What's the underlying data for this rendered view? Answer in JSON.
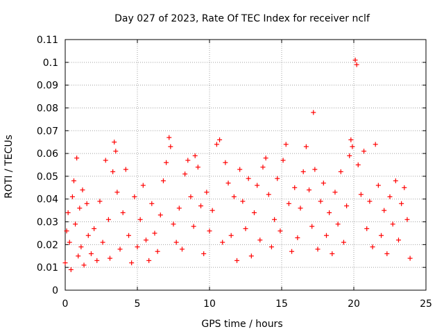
{
  "chart_data": {
    "type": "scatter",
    "title": "Day 027 of 2023, Rate Of TEC Index for receiver nclf",
    "xlabel": "GPS time / hours",
    "ylabel": "ROTI / TECUs",
    "xlim": [
      0,
      25
    ],
    "ylim": [
      0,
      0.11
    ],
    "x_ticks": [
      0,
      5,
      10,
      15,
      20,
      25
    ],
    "x_tick_labels": [
      "0",
      "5",
      "10",
      "15",
      "20",
      "25"
    ],
    "y_ticks": [
      0,
      0.01,
      0.02,
      0.03,
      0.04,
      0.05,
      0.06,
      0.07,
      0.08,
      0.09,
      0.1,
      0.11
    ],
    "y_tick_labels": [
      "0",
      "0.01",
      "0.02",
      "0.03",
      "0.04",
      "0.05",
      "0.06",
      "0.07",
      "0.08",
      "0.09",
      "0.1",
      "0.11"
    ],
    "grid": true,
    "marker": "plus",
    "series": [
      {
        "name": "ROTI",
        "color": "#ff0000",
        "points": [
          [
            0.0,
            0.012
          ],
          [
            0.1,
            0.026
          ],
          [
            0.2,
            0.034
          ],
          [
            0.3,
            0.021
          ],
          [
            0.4,
            0.009
          ],
          [
            0.5,
            0.041
          ],
          [
            0.6,
            0.048
          ],
          [
            0.7,
            0.029
          ],
          [
            0.8,
            0.058
          ],
          [
            0.9,
            0.015
          ],
          [
            1.0,
            0.036
          ],
          [
            1.1,
            0.019
          ],
          [
            1.2,
            0.044
          ],
          [
            1.3,
            0.011
          ],
          [
            1.5,
            0.038
          ],
          [
            1.6,
            0.024
          ],
          [
            1.8,
            0.016
          ],
          [
            2.0,
            0.027
          ],
          [
            2.2,
            0.013
          ],
          [
            2.4,
            0.039
          ],
          [
            2.6,
            0.021
          ],
          [
            2.8,
            0.057
          ],
          [
            3.0,
            0.031
          ],
          [
            3.1,
            0.014
          ],
          [
            3.3,
            0.052
          ],
          [
            3.4,
            0.065
          ],
          [
            3.5,
            0.061
          ],
          [
            3.6,
            0.043
          ],
          [
            3.8,
            0.018
          ],
          [
            4.0,
            0.034
          ],
          [
            4.2,
            0.053
          ],
          [
            4.4,
            0.024
          ],
          [
            4.6,
            0.012
          ],
          [
            4.8,
            0.041
          ],
          [
            5.0,
            0.019
          ],
          [
            5.2,
            0.031
          ],
          [
            5.4,
            0.046
          ],
          [
            5.6,
            0.022
          ],
          [
            5.8,
            0.013
          ],
          [
            6.0,
            0.038
          ],
          [
            6.2,
            0.025
          ],
          [
            6.4,
            0.017
          ],
          [
            6.6,
            0.033
          ],
          [
            6.8,
            0.048
          ],
          [
            7.0,
            0.056
          ],
          [
            7.2,
            0.067
          ],
          [
            7.3,
            0.063
          ],
          [
            7.5,
            0.029
          ],
          [
            7.7,
            0.021
          ],
          [
            7.9,
            0.036
          ],
          [
            8.1,
            0.018
          ],
          [
            8.3,
            0.051
          ],
          [
            8.5,
            0.057
          ],
          [
            8.7,
            0.041
          ],
          [
            8.9,
            0.028
          ],
          [
            9.0,
            0.059
          ],
          [
            9.2,
            0.054
          ],
          [
            9.4,
            0.037
          ],
          [
            9.6,
            0.016
          ],
          [
            9.8,
            0.043
          ],
          [
            10.0,
            0.026
          ],
          [
            10.2,
            0.035
          ],
          [
            10.5,
            0.064
          ],
          [
            10.7,
            0.066
          ],
          [
            10.9,
            0.021
          ],
          [
            11.1,
            0.056
          ],
          [
            11.3,
            0.047
          ],
          [
            11.5,
            0.024
          ],
          [
            11.7,
            0.041
          ],
          [
            11.9,
            0.013
          ],
          [
            12.1,
            0.053
          ],
          [
            12.3,
            0.039
          ],
          [
            12.5,
            0.027
          ],
          [
            12.7,
            0.049
          ],
          [
            12.9,
            0.015
          ],
          [
            13.1,
            0.034
          ],
          [
            13.3,
            0.046
          ],
          [
            13.5,
            0.022
          ],
          [
            13.7,
            0.054
          ],
          [
            13.9,
            0.058
          ],
          [
            14.1,
            0.042
          ],
          [
            14.3,
            0.019
          ],
          [
            14.5,
            0.031
          ],
          [
            14.7,
            0.049
          ],
          [
            14.9,
            0.026
          ],
          [
            15.1,
            0.057
          ],
          [
            15.3,
            0.064
          ],
          [
            15.5,
            0.038
          ],
          [
            15.7,
            0.017
          ],
          [
            15.9,
            0.045
          ],
          [
            16.1,
            0.023
          ],
          [
            16.3,
            0.036
          ],
          [
            16.5,
            0.052
          ],
          [
            16.7,
            0.063
          ],
          [
            16.9,
            0.044
          ],
          [
            17.1,
            0.028
          ],
          [
            17.2,
            0.078
          ],
          [
            17.3,
            0.053
          ],
          [
            17.5,
            0.018
          ],
          [
            17.7,
            0.039
          ],
          [
            17.9,
            0.047
          ],
          [
            18.1,
            0.024
          ],
          [
            18.3,
            0.034
          ],
          [
            18.5,
            0.016
          ],
          [
            18.7,
            0.043
          ],
          [
            18.9,
            0.029
          ],
          [
            19.1,
            0.052
          ],
          [
            19.3,
            0.021
          ],
          [
            19.5,
            0.037
          ],
          [
            19.7,
            0.059
          ],
          [
            19.8,
            0.066
          ],
          [
            19.9,
            0.063
          ],
          [
            20.1,
            0.101
          ],
          [
            20.2,
            0.099
          ],
          [
            20.3,
            0.055
          ],
          [
            20.5,
            0.042
          ],
          [
            20.7,
            0.061
          ],
          [
            20.9,
            0.027
          ],
          [
            21.1,
            0.039
          ],
          [
            21.3,
            0.019
          ],
          [
            21.5,
            0.064
          ],
          [
            21.7,
            0.046
          ],
          [
            21.9,
            0.024
          ],
          [
            22.1,
            0.035
          ],
          [
            22.3,
            0.016
          ],
          [
            22.5,
            0.041
          ],
          [
            22.7,
            0.029
          ],
          [
            22.9,
            0.048
          ],
          [
            23.1,
            0.022
          ],
          [
            23.3,
            0.038
          ],
          [
            23.5,
            0.045
          ],
          [
            23.7,
            0.031
          ],
          [
            23.9,
            0.014
          ]
        ]
      }
    ]
  }
}
